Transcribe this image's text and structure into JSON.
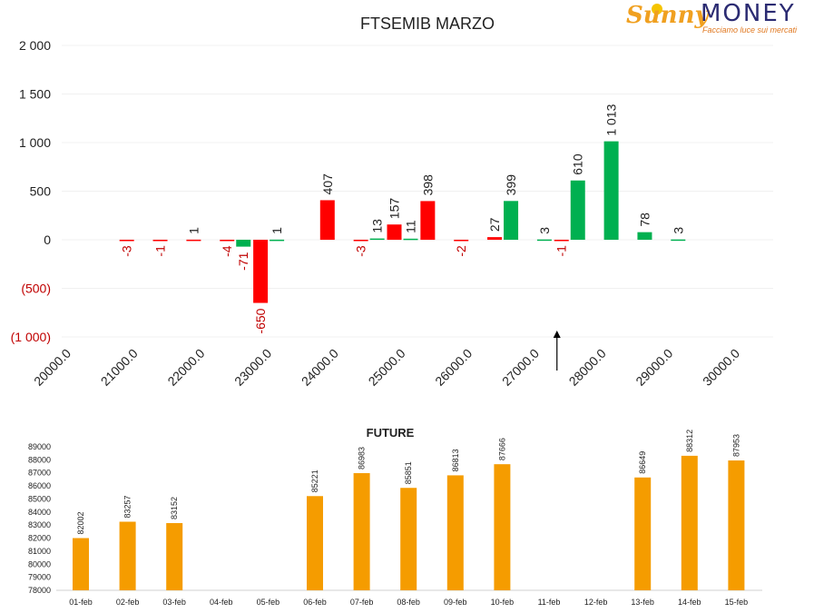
{
  "logo": {
    "brand_left": "Sunny",
    "brand_right": "MONEY",
    "tagline": "Facciamo luce sui mercati"
  },
  "colors": {
    "put": "#ff0000",
    "call": "#00b050",
    "future": "#f59c00",
    "negative_label": "#c00000",
    "label": "#333333"
  },
  "chart_data": [
    {
      "type": "bar",
      "title": "FTSEMIB MARZO",
      "ylim": [
        -1000,
        2000
      ],
      "yticks": [
        "2 000",
        "1 500",
        "1 000",
        "500",
        "0",
        "(500)",
        "(1 000)"
      ],
      "ytick_values": [
        2000,
        1500,
        1000,
        500,
        0,
        -500,
        -1000
      ],
      "xticks": [
        "20000.0",
        "21000.0",
        "22000.0",
        "23000.0",
        "24000.0",
        "25000.0",
        "26000.0",
        "27000.0",
        "28000.0",
        "29000.0",
        "30000.0"
      ],
      "current_level_marker": 27500,
      "series": [
        {
          "key": "put",
          "strikes": [
            21000,
            21500,
            22000,
            22500,
            23000,
            24000,
            24500,
            25000,
            25500,
            26000,
            26500,
            27500
          ],
          "values": [
            -3,
            -1,
            1,
            -4,
            -650,
            407,
            -3,
            157,
            398,
            -2,
            27,
            -1
          ],
          "labels": [
            "-3",
            "-1",
            "1",
            "-4",
            "-650",
            "407",
            "-3",
            "157",
            "398",
            "-2",
            "27",
            "-1"
          ]
        },
        {
          "key": "call",
          "strikes": [
            22500,
            23000,
            24500,
            25000,
            26500,
            27000,
            27500,
            28000,
            28500,
            29000
          ],
          "values": [
            -71,
            1,
            13,
            11,
            399,
            3,
            610,
            1013,
            78,
            3
          ],
          "labels": [
            "-71",
            "1",
            "13",
            "11",
            "399",
            "3",
            "610",
            "1 013",
            "78",
            "3"
          ]
        }
      ]
    },
    {
      "type": "bar",
      "title": "FUTURE",
      "ylim": [
        78000,
        89000
      ],
      "yticks": [
        "89000",
        "88000",
        "87000",
        "86000",
        "85000",
        "84000",
        "83000",
        "82000",
        "81000",
        "80000",
        "79000",
        "78000"
      ],
      "ytick_values": [
        89000,
        88000,
        87000,
        86000,
        85000,
        84000,
        83000,
        82000,
        81000,
        80000,
        79000,
        78000
      ],
      "categories": [
        "01-feb",
        "02-feb",
        "03-feb",
        "04-feb",
        "05-feb",
        "06-feb",
        "07-feb",
        "08-feb",
        "09-feb",
        "10-feb",
        "11-feb",
        "12-feb",
        "13-feb",
        "14-feb",
        "15-feb"
      ],
      "values": [
        82002,
        83257,
        83152,
        null,
        null,
        85221,
        86983,
        85851,
        86813,
        87666,
        null,
        null,
        86649,
        88312,
        87953
      ],
      "labels": [
        "82002",
        "83257",
        "83152",
        "",
        "",
        "85221",
        "86983",
        "85851",
        "86813",
        "87666",
        "",
        "",
        "86649",
        "88312",
        "87953"
      ]
    }
  ]
}
